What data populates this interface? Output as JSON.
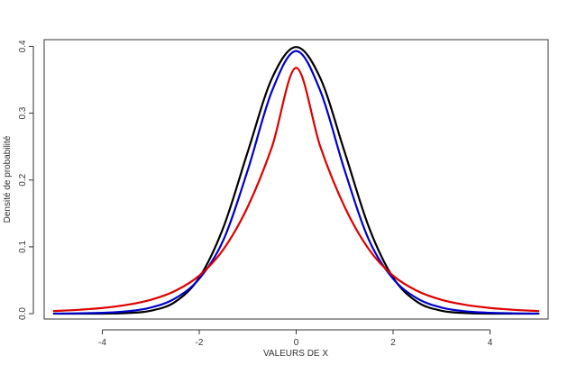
{
  "chart_data": {
    "type": "line",
    "title": "",
    "xlabel": "VALEURS DE X",
    "ylabel": "Densité de probabilité",
    "xlim": [
      -5.2,
      5.2
    ],
    "ylim": [
      -0.008,
      0.41
    ],
    "grid": false,
    "legend": "none",
    "x_ticks": [
      -4,
      -2,
      0,
      2,
      4
    ],
    "x_tick_labels": [
      "-4",
      "-2",
      "0",
      "2",
      "4"
    ],
    "y_ticks": [
      0.0,
      0.1,
      0.2,
      0.3,
      0.4
    ],
    "y_tick_labels": [
      "0.0",
      "0.1",
      "0.2",
      "0.3",
      "0.4"
    ],
    "x": [
      -5,
      -4.5,
      -4,
      -3.5,
      -3,
      -2.5,
      -2,
      -1.5,
      -1,
      -0.5,
      0,
      0.5,
      1,
      1.5,
      2,
      2.5,
      3,
      3.5,
      4,
      4.5,
      5
    ],
    "series": [
      {
        "color": "#000000",
        "values": [
          1.5e-06,
          1.6e-05,
          0.000134,
          0.000873,
          0.00443,
          0.01753,
          0.05399,
          0.12952,
          0.24197,
          0.35207,
          0.39894,
          0.35207,
          0.24197,
          0.12952,
          0.05399,
          0.01753,
          0.00443,
          0.000873,
          0.000134,
          1.6e-05,
          1.5e-06
        ]
      },
      {
        "color": "#0000cc",
        "values": [
          0.00018,
          0.00048,
          0.0013,
          0.00347,
          0.00916,
          0.02271,
          0.05231,
          0.11051,
          0.21456,
          0.33306,
          0.393,
          0.33306,
          0.21456,
          0.11051,
          0.05231,
          0.02271,
          0.00916,
          0.00347,
          0.0013,
          0.00048,
          0.00018
        ]
      },
      {
        "color": "#dd0000",
        "values": [
          0.00396,
          0.00575,
          0.00855,
          0.01312,
          0.02078,
          0.034,
          0.0569,
          0.09639,
          0.15985,
          0.2495,
          0.36788,
          0.2495,
          0.15985,
          0.09639,
          0.0569,
          0.034,
          0.02078,
          0.01312,
          0.00855,
          0.00575,
          0.00396
        ]
      }
    ]
  }
}
